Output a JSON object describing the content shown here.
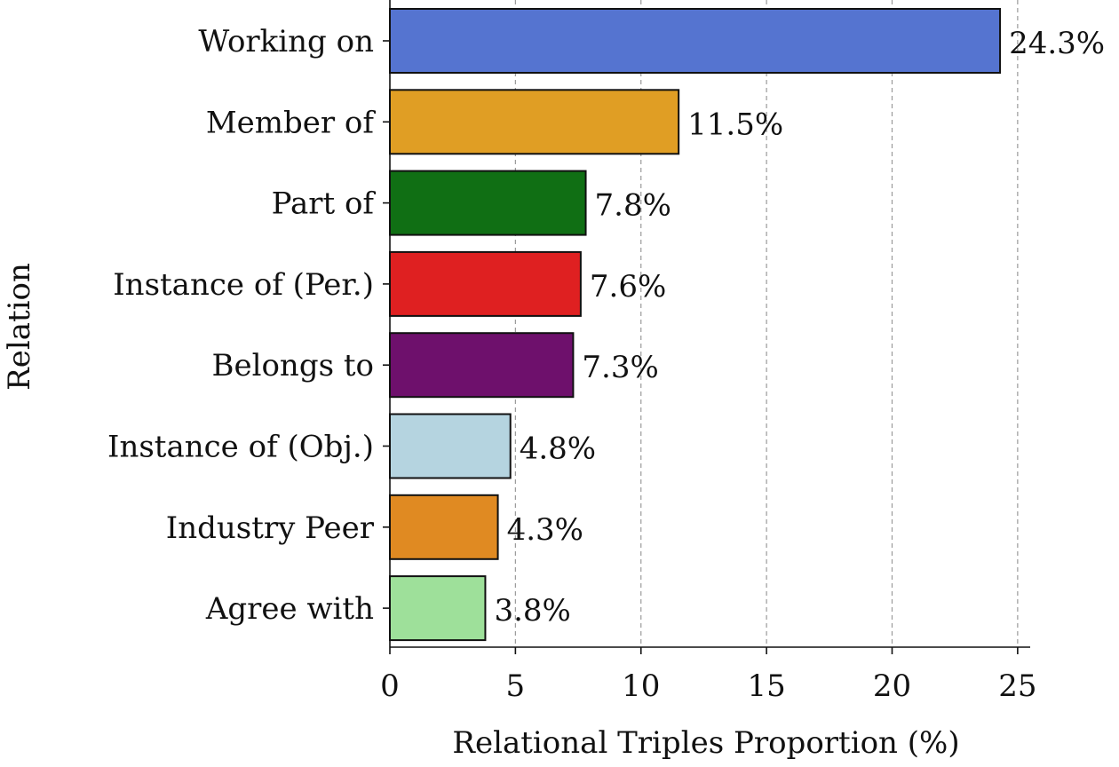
{
  "chart_data": {
    "type": "bar",
    "orientation": "horizontal",
    "categories": [
      "Working on",
      "Member of",
      "Part of",
      "Instance of (Per.)",
      "Belongs to",
      "Instance of (Obj.)",
      "Industry Peer",
      "Agree with"
    ],
    "values": [
      24.3,
      11.5,
      7.8,
      7.6,
      7.3,
      4.8,
      4.3,
      3.8
    ],
    "value_labels": [
      "24.3%",
      "11.5%",
      "7.8%",
      "7.6%",
      "7.3%",
      "4.8%",
      "4.3%",
      "3.8%"
    ],
    "colors": [
      "#5574d0",
      "#e09e24",
      "#106f14",
      "#df2021",
      "#6e106c",
      "#b5d4e0",
      "#e08a22",
      "#9ee09a"
    ],
    "xlabel": "Relational Triples Proportion (%)",
    "ylabel": "Relation",
    "xlim": [
      0,
      25.5
    ],
    "xticks": [
      0,
      5,
      10,
      15,
      20,
      25
    ],
    "xtick_labels": [
      "0",
      "5",
      "10",
      "15",
      "20",
      "25"
    ],
    "grid": "vertical-dashed",
    "legend": "none"
  }
}
